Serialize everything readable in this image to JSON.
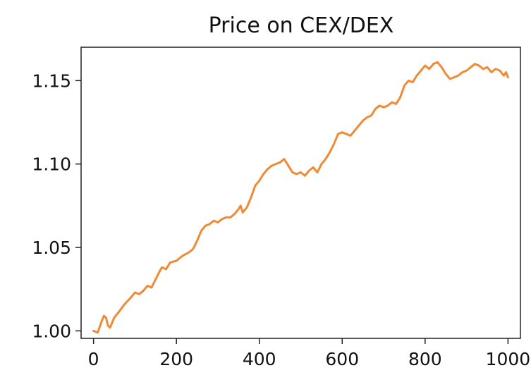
{
  "chart_data": {
    "type": "line",
    "title": "Price on CEX/DEX",
    "xlabel": "",
    "ylabel": "",
    "xlim": [
      -30,
      1030
    ],
    "ylim": [
      0.9955,
      1.17
    ],
    "grid": false,
    "x_ticks": [
      0,
      200,
      400,
      600,
      800,
      1000
    ],
    "x_tick_labels": [
      "0",
      "200",
      "400",
      "600",
      "800",
      "1000"
    ],
    "y_ticks": [
      1.0,
      1.05,
      1.1,
      1.15
    ],
    "y_tick_labels": [
      "1.00",
      "1.05",
      "1.10",
      "1.15"
    ],
    "series": [
      {
        "color": "#ef8a35",
        "x": [
          0,
          10,
          20,
          25,
          30,
          35,
          40,
          50,
          60,
          75,
          90,
          100,
          110,
          120,
          130,
          140,
          150,
          160,
          165,
          175,
          185,
          200,
          215,
          230,
          240,
          250,
          260,
          270,
          280,
          290,
          300,
          310,
          320,
          330,
          340,
          350,
          355,
          360,
          370,
          380,
          390,
          400,
          410,
          420,
          430,
          440,
          450,
          460,
          470,
          480,
          490,
          500,
          510,
          520,
          530,
          540,
          550,
          560,
          570,
          580,
          590,
          600,
          610,
          620,
          630,
          640,
          650,
          660,
          670,
          680,
          690,
          700,
          710,
          720,
          730,
          740,
          750,
          760,
          770,
          780,
          790,
          800,
          810,
          820,
          830,
          840,
          850,
          860,
          870,
          880,
          890,
          900,
          910,
          920,
          930,
          940,
          950,
          960,
          970,
          980,
          990,
          995,
          1000
        ],
        "y": [
          1.0,
          0.999,
          1.006,
          1.009,
          1.008,
          1.003,
          1.002,
          1.008,
          1.011,
          1.016,
          1.02,
          1.023,
          1.022,
          1.024,
          1.027,
          1.026,
          1.031,
          1.036,
          1.038,
          1.037,
          1.041,
          1.042,
          1.045,
          1.047,
          1.049,
          1.054,
          1.06,
          1.063,
          1.064,
          1.066,
          1.065,
          1.067,
          1.068,
          1.068,
          1.07,
          1.073,
          1.075,
          1.071,
          1.074,
          1.08,
          1.087,
          1.09,
          1.094,
          1.097,
          1.099,
          1.1,
          1.101,
          1.103,
          1.099,
          1.095,
          1.094,
          1.095,
          1.093,
          1.096,
          1.098,
          1.095,
          1.1,
          1.103,
          1.107,
          1.112,
          1.118,
          1.119,
          1.118,
          1.117,
          1.12,
          1.123,
          1.126,
          1.128,
          1.129,
          1.133,
          1.135,
          1.134,
          1.135,
          1.137,
          1.136,
          1.14,
          1.147,
          1.15,
          1.149,
          1.153,
          1.156,
          1.159,
          1.157,
          1.16,
          1.161,
          1.158,
          1.154,
          1.151,
          1.152,
          1.153,
          1.155,
          1.156,
          1.158,
          1.16,
          1.159,
          1.157,
          1.158,
          1.155,
          1.157,
          1.156,
          1.153,
          1.155,
          1.152
        ]
      }
    ]
  }
}
